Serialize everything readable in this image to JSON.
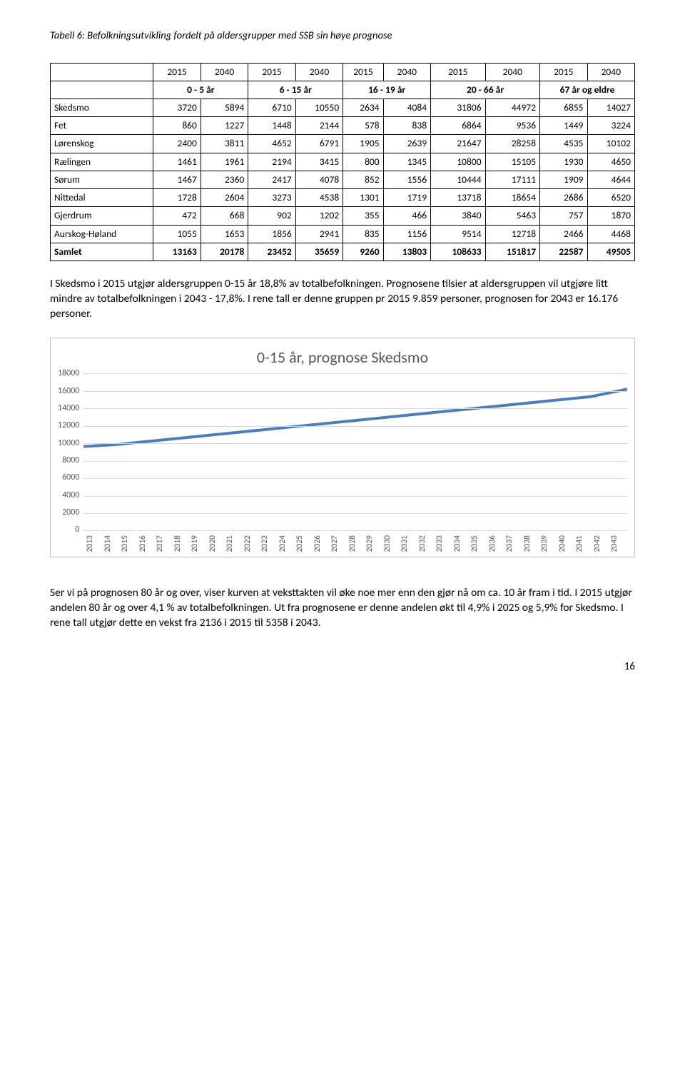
{
  "caption": "Tabell 6: Befolkningsutvikling fordelt på aldersgrupper med SSB sin høye prognose",
  "table": {
    "year_headers": [
      "2015",
      "2040",
      "2015",
      "2040",
      "2015",
      "2040",
      "2015",
      "2040",
      "2015",
      "2040"
    ],
    "group_headers": [
      "0 - 5 år",
      "6 - 15 år",
      "16 - 19 år",
      "20 - 66 år",
      "67 år og eldre"
    ],
    "rows": [
      {
        "label": "Skedsmo",
        "cells": [
          "3720",
          "5894",
          "6710",
          "10550",
          "2634",
          "4084",
          "31806",
          "44972",
          "6855",
          "14027"
        ]
      },
      {
        "label": "Fet",
        "cells": [
          "860",
          "1227",
          "1448",
          "2144",
          "578",
          "838",
          "6864",
          "9536",
          "1449",
          "3224"
        ]
      },
      {
        "label": "Lørenskog",
        "cells": [
          "2400",
          "3811",
          "4652",
          "6791",
          "1905",
          "2639",
          "21647",
          "28258",
          "4535",
          "10102"
        ]
      },
      {
        "label": "Rælingen",
        "cells": [
          "1461",
          "1961",
          "2194",
          "3415",
          "800",
          "1345",
          "10800",
          "15105",
          "1930",
          "4650"
        ]
      },
      {
        "label": "Sørum",
        "cells": [
          "1467",
          "2360",
          "2417",
          "4078",
          "852",
          "1556",
          "10444",
          "17111",
          "1909",
          "4644"
        ]
      },
      {
        "label": "Nittedal",
        "cells": [
          "1728",
          "2604",
          "3273",
          "4538",
          "1301",
          "1719",
          "13718",
          "18654",
          "2686",
          "6520"
        ]
      },
      {
        "label": "Gjerdrum",
        "cells": [
          "472",
          "668",
          "902",
          "1202",
          "355",
          "466",
          "3840",
          "5463",
          "757",
          "1870"
        ]
      },
      {
        "label": "Aurskog-Høland",
        "cells": [
          "1055",
          "1653",
          "1856",
          "2941",
          "835",
          "1156",
          "9514",
          "12718",
          "2466",
          "4468"
        ]
      },
      {
        "label": "Samlet",
        "cells": [
          "13163",
          "20178",
          "23452",
          "35659",
          "9260",
          "13803",
          "108633",
          "151817",
          "22587",
          "49505"
        ],
        "bold": true
      }
    ]
  },
  "para1": "I Skedsmo i 2015 utgjør aldersgruppen 0-15 år 18,8% av totalbefolkningen. Prognosene tilsier at aldersgruppen vil utgjøre litt mindre av totalbefolkningen i 2043 -  17,8%.  I rene tall er denne gruppen pr 2015 9.859 personer, prognosen for 2043 er 16.176 personer.",
  "chart": {
    "title": "0-15 år, prognose Skedsmo",
    "ymax": 18000,
    "ytick_step": 2000,
    "yticks": [
      "18000",
      "16000",
      "14000",
      "12000",
      "10000",
      "8000",
      "6000",
      "4000",
      "2000",
      "0"
    ],
    "line_color": "#4a7ebb",
    "line_width": 4,
    "grid_color": "#d9d9d9",
    "border_color": "#bfbfbf",
    "title_color": "#595959",
    "title_fontsize": 22,
    "axis_font_color": "#595959",
    "years": [
      "2013",
      "2014",
      "2015",
      "2016",
      "2017",
      "2018",
      "2019",
      "2020",
      "2021",
      "2022",
      "2023",
      "2024",
      "2025",
      "2026",
      "2027",
      "2028",
      "2029",
      "2030",
      "2031",
      "2032",
      "2033",
      "2034",
      "2035",
      "2036",
      "2037",
      "2038",
      "2039",
      "2040",
      "2041",
      "2042",
      "2043"
    ],
    "values": [
      9600,
      9730,
      9859,
      10070,
      10280,
      10490,
      10700,
      10910,
      11120,
      11330,
      11540,
      11750,
      11960,
      12170,
      12380,
      12590,
      12800,
      13010,
      13220,
      13430,
      13640,
      13850,
      14060,
      14270,
      14480,
      14690,
      14900,
      15110,
      15320,
      15748,
      16176
    ]
  },
  "para2": "Ser vi på prognosen 80 år og over, viser kurven at veksttakten vil øke noe mer enn den gjør nå om ca. 10 år fram i tid. I 2015 utgjør andelen 80 år og over 4,1 % av totalbefolkningen. Ut fra prognosene er denne andelen økt til 4,9% i 2025 og 5,9% for Skedsmo. I rene tall utgjør dette en vekst fra 2136 i 2015 til 5358 i 2043.",
  "page_number": "16"
}
